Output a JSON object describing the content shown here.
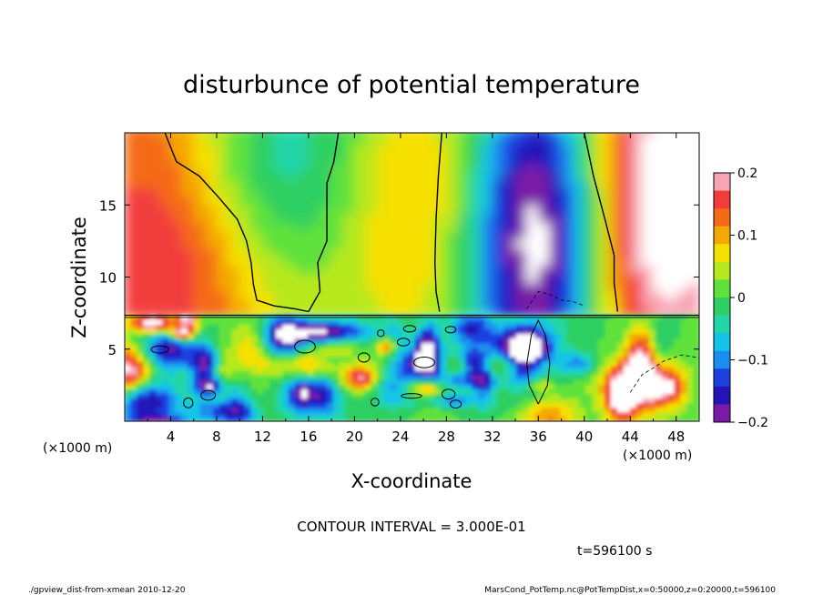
{
  "chart_data": {
    "type": "heatmap",
    "title": "disturbunce of potential temperature",
    "xlabel": "X-coordinate",
    "ylabel": "Z-coordinate",
    "x_unit": "(×1000 m)",
    "z_unit": "(×1000 m)",
    "xlim": [
      0,
      50
    ],
    "ylim": [
      0,
      20
    ],
    "x_ticks": [
      "4",
      "8",
      "12",
      "16",
      "20",
      "24",
      "28",
      "32",
      "36",
      "40",
      "44",
      "48"
    ],
    "y_ticks": [
      "5",
      "10",
      "15"
    ],
    "colorbar": {
      "min": -0.2,
      "max": 0.2,
      "labels": [
        "0.2",
        "0.1",
        "0",
        "−0.1",
        "−0.2"
      ],
      "colors": [
        "#f8a4b4",
        "#f23c3c",
        "#f56a16",
        "#f5a800",
        "#f5e000",
        "#b6e81e",
        "#5ee23a",
        "#2ecf62",
        "#22d6a8",
        "#14c4e6",
        "#1a8ef0",
        "#1a40e0",
        "#2414b8",
        "#7a1aa8"
      ]
    },
    "contour_interval": "CONTOUR INTERVAL = 3.000E-01",
    "time_label": "t=596100 s"
  },
  "footer": {
    "left": "./gpview_dist-from-xmean  2010-12-20",
    "right": "MarsCond_PotTemp.nc@PotTempDist,x=0:50000,z=0:20000,t=596100"
  }
}
